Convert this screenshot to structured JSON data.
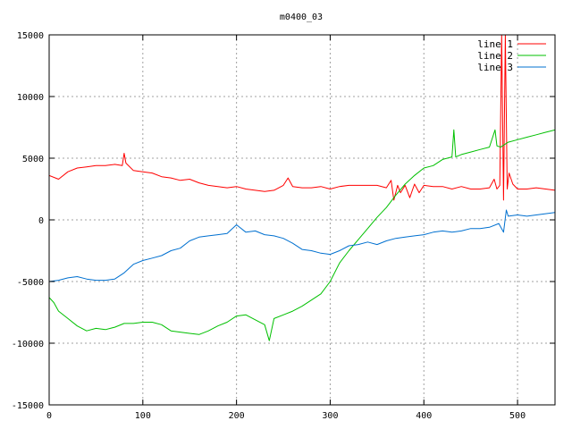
{
  "chart_data": {
    "type": "line",
    "title": "m0400_03",
    "xlabel": "",
    "ylabel": "",
    "xlim": [
      0,
      540
    ],
    "ylim": [
      -15000,
      15000
    ],
    "xticks": [
      0,
      100,
      200,
      300,
      400,
      500
    ],
    "yticks": [
      -15000,
      -10000,
      -5000,
      0,
      5000,
      10000,
      15000
    ],
    "grid": true,
    "legend_position": "top-right",
    "series": [
      {
        "name": "line 1",
        "color": "#ff0000",
        "points": [
          [
            0,
            3600
          ],
          [
            10,
            3300
          ],
          [
            20,
            3900
          ],
          [
            30,
            4200
          ],
          [
            40,
            4300
          ],
          [
            50,
            4400
          ],
          [
            60,
            4400
          ],
          [
            70,
            4500
          ],
          [
            78,
            4400
          ],
          [
            80,
            5400
          ],
          [
            82,
            4600
          ],
          [
            90,
            4000
          ],
          [
            100,
            3900
          ],
          [
            110,
            3800
          ],
          [
            120,
            3500
          ],
          [
            130,
            3400
          ],
          [
            140,
            3200
          ],
          [
            150,
            3300
          ],
          [
            160,
            3000
          ],
          [
            170,
            2800
          ],
          [
            180,
            2700
          ],
          [
            190,
            2600
          ],
          [
            200,
            2700
          ],
          [
            210,
            2500
          ],
          [
            220,
            2400
          ],
          [
            230,
            2300
          ],
          [
            240,
            2400
          ],
          [
            250,
            2800
          ],
          [
            255,
            3400
          ],
          [
            260,
            2700
          ],
          [
            270,
            2600
          ],
          [
            280,
            2600
          ],
          [
            290,
            2700
          ],
          [
            300,
            2500
          ],
          [
            310,
            2700
          ],
          [
            320,
            2800
          ],
          [
            330,
            2800
          ],
          [
            340,
            2800
          ],
          [
            350,
            2800
          ],
          [
            360,
            2600
          ],
          [
            365,
            3200
          ],
          [
            368,
            1600
          ],
          [
            372,
            2800
          ],
          [
            375,
            2200
          ],
          [
            380,
            2800
          ],
          [
            385,
            1800
          ],
          [
            390,
            2900
          ],
          [
            395,
            2200
          ],
          [
            400,
            2800
          ],
          [
            410,
            2700
          ],
          [
            420,
            2700
          ],
          [
            430,
            2500
          ],
          [
            440,
            2700
          ],
          [
            450,
            2500
          ],
          [
            460,
            2500
          ],
          [
            470,
            2600
          ],
          [
            475,
            3300
          ],
          [
            478,
            2500
          ],
          [
            481,
            2800
          ],
          [
            483,
            15000
          ],
          [
            485,
            1600
          ],
          [
            487,
            15000
          ],
          [
            489,
            2500
          ],
          [
            491,
            3800
          ],
          [
            495,
            2900
          ],
          [
            500,
            2500
          ],
          [
            510,
            2500
          ],
          [
            520,
            2600
          ],
          [
            530,
            2500
          ],
          [
            540,
            2400
          ]
        ]
      },
      {
        "name": "line 2",
        "color": "#00c000",
        "points": [
          [
            0,
            -6300
          ],
          [
            5,
            -6700
          ],
          [
            10,
            -7400
          ],
          [
            20,
            -8000
          ],
          [
            30,
            -8600
          ],
          [
            40,
            -9000
          ],
          [
            50,
            -8800
          ],
          [
            60,
            -8900
          ],
          [
            70,
            -8700
          ],
          [
            80,
            -8400
          ],
          [
            90,
            -8400
          ],
          [
            100,
            -8300
          ],
          [
            110,
            -8300
          ],
          [
            120,
            -8500
          ],
          [
            130,
            -9000
          ],
          [
            140,
            -9100
          ],
          [
            150,
            -9200
          ],
          [
            160,
            -9300
          ],
          [
            170,
            -9000
          ],
          [
            180,
            -8600
          ],
          [
            190,
            -8300
          ],
          [
            200,
            -7800
          ],
          [
            210,
            -7700
          ],
          [
            220,
            -8100
          ],
          [
            230,
            -8500
          ],
          [
            235,
            -9800
          ],
          [
            240,
            -8000
          ],
          [
            250,
            -7700
          ],
          [
            260,
            -7400
          ],
          [
            270,
            -7000
          ],
          [
            280,
            -6500
          ],
          [
            290,
            -6000
          ],
          [
            300,
            -5000
          ],
          [
            310,
            -3500
          ],
          [
            320,
            -2500
          ],
          [
            330,
            -1600
          ],
          [
            340,
            -700
          ],
          [
            350,
            200
          ],
          [
            360,
            1000
          ],
          [
            370,
            2000
          ],
          [
            380,
            2900
          ],
          [
            390,
            3600
          ],
          [
            400,
            4200
          ],
          [
            410,
            4400
          ],
          [
            420,
            4900
          ],
          [
            430,
            5100
          ],
          [
            432,
            7300
          ],
          [
            434,
            5100
          ],
          [
            440,
            5300
          ],
          [
            450,
            5500
          ],
          [
            460,
            5700
          ],
          [
            470,
            5900
          ],
          [
            476,
            7300
          ],
          [
            478,
            6000
          ],
          [
            482,
            5900
          ],
          [
            490,
            6300
          ],
          [
            500,
            6500
          ],
          [
            510,
            6700
          ],
          [
            520,
            6900
          ],
          [
            530,
            7100
          ],
          [
            540,
            7300
          ]
        ]
      },
      {
        "name": "line 3",
        "color": "#0070d0",
        "points": [
          [
            0,
            -5000
          ],
          [
            10,
            -4900
          ],
          [
            20,
            -4700
          ],
          [
            30,
            -4600
          ],
          [
            40,
            -4800
          ],
          [
            50,
            -4900
          ],
          [
            60,
            -4900
          ],
          [
            70,
            -4800
          ],
          [
            80,
            -4300
          ],
          [
            90,
            -3600
          ],
          [
            100,
            -3300
          ],
          [
            110,
            -3100
          ],
          [
            120,
            -2900
          ],
          [
            130,
            -2500
          ],
          [
            140,
            -2300
          ],
          [
            150,
            -1700
          ],
          [
            160,
            -1400
          ],
          [
            170,
            -1300
          ],
          [
            180,
            -1200
          ],
          [
            190,
            -1100
          ],
          [
            200,
            -400
          ],
          [
            210,
            -1000
          ],
          [
            220,
            -900
          ],
          [
            230,
            -1200
          ],
          [
            240,
            -1300
          ],
          [
            250,
            -1500
          ],
          [
            260,
            -1900
          ],
          [
            270,
            -2400
          ],
          [
            280,
            -2500
          ],
          [
            290,
            -2700
          ],
          [
            300,
            -2800
          ],
          [
            310,
            -2500
          ],
          [
            320,
            -2100
          ],
          [
            330,
            -2000
          ],
          [
            340,
            -1800
          ],
          [
            350,
            -2000
          ],
          [
            360,
            -1700
          ],
          [
            370,
            -1500
          ],
          [
            380,
            -1400
          ],
          [
            390,
            -1300
          ],
          [
            400,
            -1200
          ],
          [
            410,
            -1000
          ],
          [
            420,
            -900
          ],
          [
            430,
            -1000
          ],
          [
            440,
            -900
          ],
          [
            450,
            -700
          ],
          [
            460,
            -700
          ],
          [
            470,
            -600
          ],
          [
            480,
            -300
          ],
          [
            485,
            -1000
          ],
          [
            488,
            800
          ],
          [
            490,
            300
          ],
          [
            500,
            400
          ],
          [
            510,
            300
          ],
          [
            520,
            400
          ],
          [
            530,
            500
          ],
          [
            540,
            600
          ]
        ]
      }
    ]
  }
}
